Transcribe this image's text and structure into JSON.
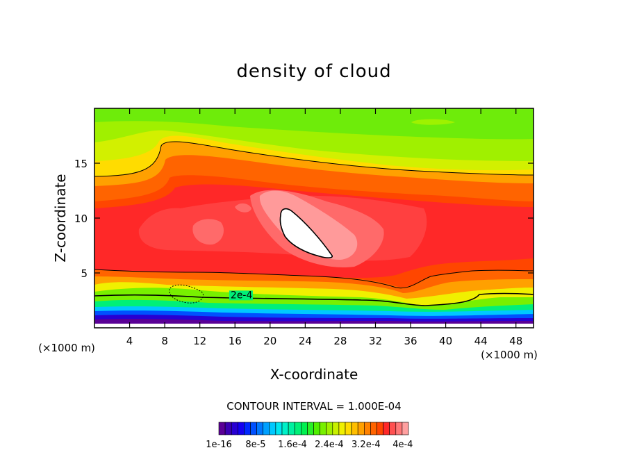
{
  "chart_data": {
    "type": "heatmap",
    "title": "density of cloud",
    "xlabel": "X-coordinate",
    "ylabel": "Z-coordinate",
    "x_unit_left": "(×1000 m)",
    "x_unit_right": "(×1000 m)",
    "xlim": [
      0,
      50
    ],
    "ylim": [
      0,
      20
    ],
    "x_ticks": [
      4,
      8,
      12,
      16,
      20,
      24,
      28,
      32,
      36,
      40,
      44,
      48
    ],
    "y_ticks": [
      5,
      10,
      15
    ],
    "contour_interval_text": "CONTOUR INTERVAL = 1.000E-04",
    "contour_labels": [
      {
        "text": "2e-4",
        "x": 15.5,
        "y": 2.7
      }
    ],
    "colorbar": {
      "colors": [
        "#5a0096",
        "#3c00b4",
        "#2800d2",
        "#1400f0",
        "#0028ff",
        "#0050ff",
        "#0078ff",
        "#00a0ff",
        "#00c8ff",
        "#00e6f0",
        "#00f0c8",
        "#00f0a0",
        "#00f078",
        "#00f050",
        "#28f028",
        "#50f000",
        "#78f000",
        "#a0f000",
        "#c8f000",
        "#f0f000",
        "#ffdc00",
        "#ffbe00",
        "#ffa000",
        "#ff8200",
        "#ff6400",
        "#ff4600",
        "#ff2828",
        "#ff5050",
        "#ff7878",
        "#ffa0a0"
      ],
      "labels": [
        "1e-16",
        "8e-5",
        "1.6e-4",
        "2.4e-4",
        "3.2e-4",
        "4e-4"
      ]
    }
  }
}
